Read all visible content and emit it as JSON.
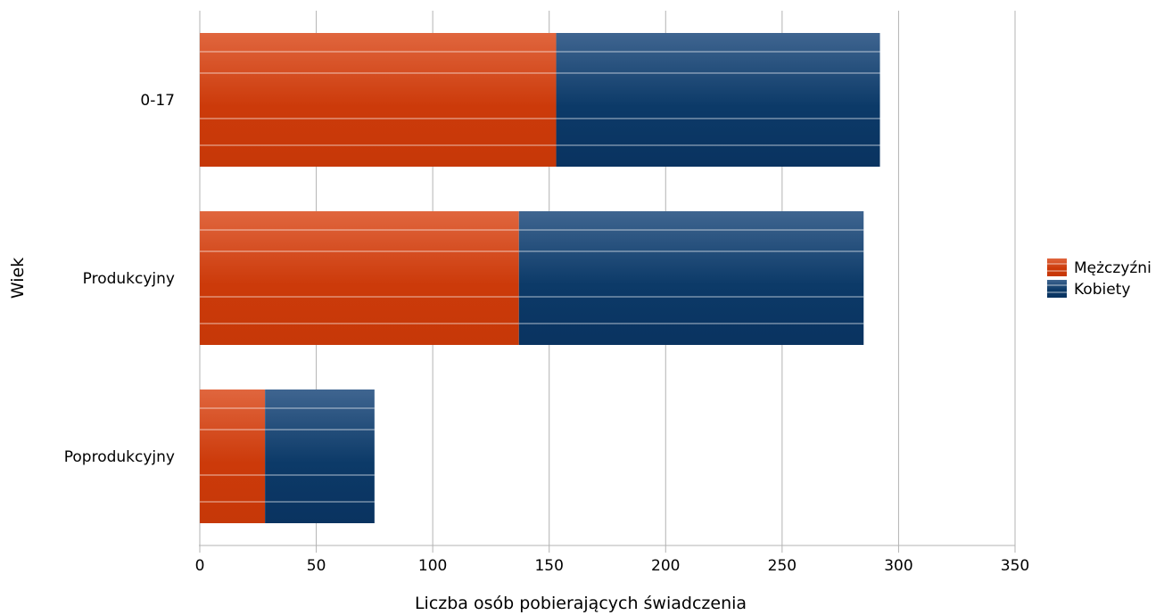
{
  "chart_data": {
    "type": "bar",
    "orientation": "horizontal",
    "stacked": true,
    "categories": [
      "0-17",
      "Produkcyjny",
      "Poprodukcyjny"
    ],
    "series": [
      {
        "name": "Mężczyźni",
        "values": [
          153,
          137,
          28
        ],
        "color": "#cc3a0a"
      },
      {
        "name": "Kobiety",
        "values": [
          139,
          148,
          47
        ],
        "color": "#0c3a68"
      }
    ],
    "xlabel": "Liczba osób pobierających świadczenia",
    "ylabel": "Wiek",
    "xlim": [
      0,
      350
    ],
    "xticks": [
      "0",
      "50",
      "100",
      "150",
      "200",
      "250",
      "300",
      "350"
    ],
    "grid": "vertical",
    "legend": "right"
  }
}
